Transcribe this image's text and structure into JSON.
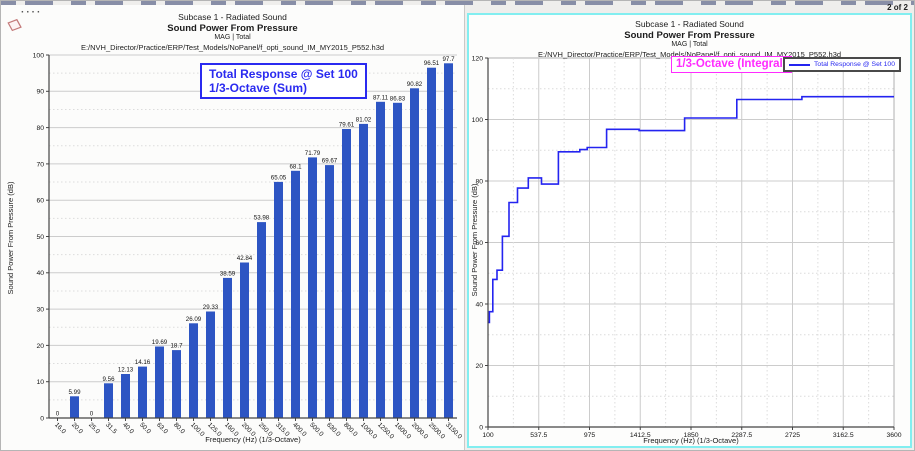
{
  "page": {
    "indicator": "2 of 2",
    "toolbar_dots": "····"
  },
  "colors": {
    "bar_blue": "#2d55c3",
    "line_blue": "#2424f0",
    "annotation_blue": "#2a2af0",
    "annotation_magenta": "#ff2bff",
    "selection_cyan": "#82eef0",
    "grid_major": "#cccccc",
    "grid_minor": "#dcdcdc",
    "axis": "#444444"
  },
  "chart_data": [
    {
      "type": "bar",
      "panel": "left",
      "title_lines": [
        "Subcase 1 - Radiated Sound",
        "Sound Power From Pressure",
        "MAG | Total",
        "E:/NVH_Director/Practice/ERP/Test_Models/NoPanel/f_opti_sound_IM_MY2015_P552.h3d"
      ],
      "annotation": [
        "Total Response @ Set 100",
        "1/3-Octave (Sum)"
      ],
      "categories": [
        "16.0",
        "20.0",
        "25.0",
        "31.5",
        "40.0",
        "50.0",
        "63.0",
        "80.0",
        "100.0",
        "125.0",
        "160.0",
        "200.0",
        "250.0",
        "315.0",
        "400.0",
        "500.0",
        "630.0",
        "800.0",
        "1000.0",
        "1250.0",
        "1600.0",
        "2000.0",
        "2500.0",
        "3150.0"
      ],
      "values": [
        0,
        5.99,
        0,
        9.56,
        12.13,
        14.16,
        19.69,
        18.7,
        26.09,
        29.33,
        38.59,
        42.84,
        53.98,
        65.05,
        68.1,
        71.79,
        69.67,
        79.61,
        81.02,
        87.11,
        86.83,
        90.82,
        96.51,
        97.7
      ],
      "value_labels": [
        "0",
        "5.99",
        "0",
        "9.56",
        "12.13",
        "14.16",
        "19.69",
        "18.7",
        "26.09",
        "29.33",
        "38.59",
        "42.84",
        "53.98",
        "65.05",
        "68.1",
        "71.79",
        "69.67",
        "79.61",
        "81.02",
        "87.11",
        "86.83",
        "90.82",
        "96.51",
        "97.7"
      ],
      "xlabel": "Frequency (Hz) (1/3-Octave)",
      "ylabel": "Sound Power From Pressure (dB)",
      "ylim": [
        0,
        100
      ],
      "yticks": [
        0,
        10,
        20,
        30,
        40,
        50,
        60,
        70,
        80,
        90,
        100
      ],
      "grid": "horizontal, solid majors every 10 dB with dotted minors every 5 dB"
    },
    {
      "type": "line",
      "panel": "right",
      "title_lines": [
        "Subcase 1 - Radiated Sound",
        "Sound Power From Pressure",
        "MAG | Total",
        "E:/NVH_Director/Practice/ERP/Test_Models/NoPanel/f_opti_sound_IM_MY2015_P552.h3d"
      ],
      "annotation": [
        "1/3-Octave (Integral)"
      ],
      "legend": "Total Response @ Set 100",
      "legend_position": "top-right",
      "step": "after",
      "x": [
        100,
        112,
        141,
        178,
        224,
        281,
        354,
        447,
        561,
        707,
        891,
        955,
        1122,
        1403,
        1795,
        2245,
        2806,
        3600
      ],
      "y": [
        34,
        37.5,
        48,
        51,
        62,
        73,
        77.7,
        81,
        79,
        89.5,
        90.2,
        90.9,
        96.8,
        96.4,
        100.5,
        106.5,
        107.4,
        107.4
      ],
      "xlabel": "Frequency (Hz) (1/3-Octave)",
      "ylabel": "Sound Power From Pressure (dB)",
      "xlim": [
        100,
        3600
      ],
      "ylim": [
        0,
        120
      ],
      "xticks": [
        100,
        537.5,
        975,
        1412.5,
        1850,
        2287.5,
        2725,
        3162.5,
        3600
      ],
      "xtick_labels": [
        "100",
        "537.5",
        "975",
        "1412.5",
        "1850",
        "2287.5",
        "2725",
        "3162.5",
        "3600"
      ],
      "yticks": [
        0,
        20,
        40,
        60,
        80,
        100,
        120
      ],
      "grid": "solid majors with dotted minors, both axes"
    }
  ]
}
